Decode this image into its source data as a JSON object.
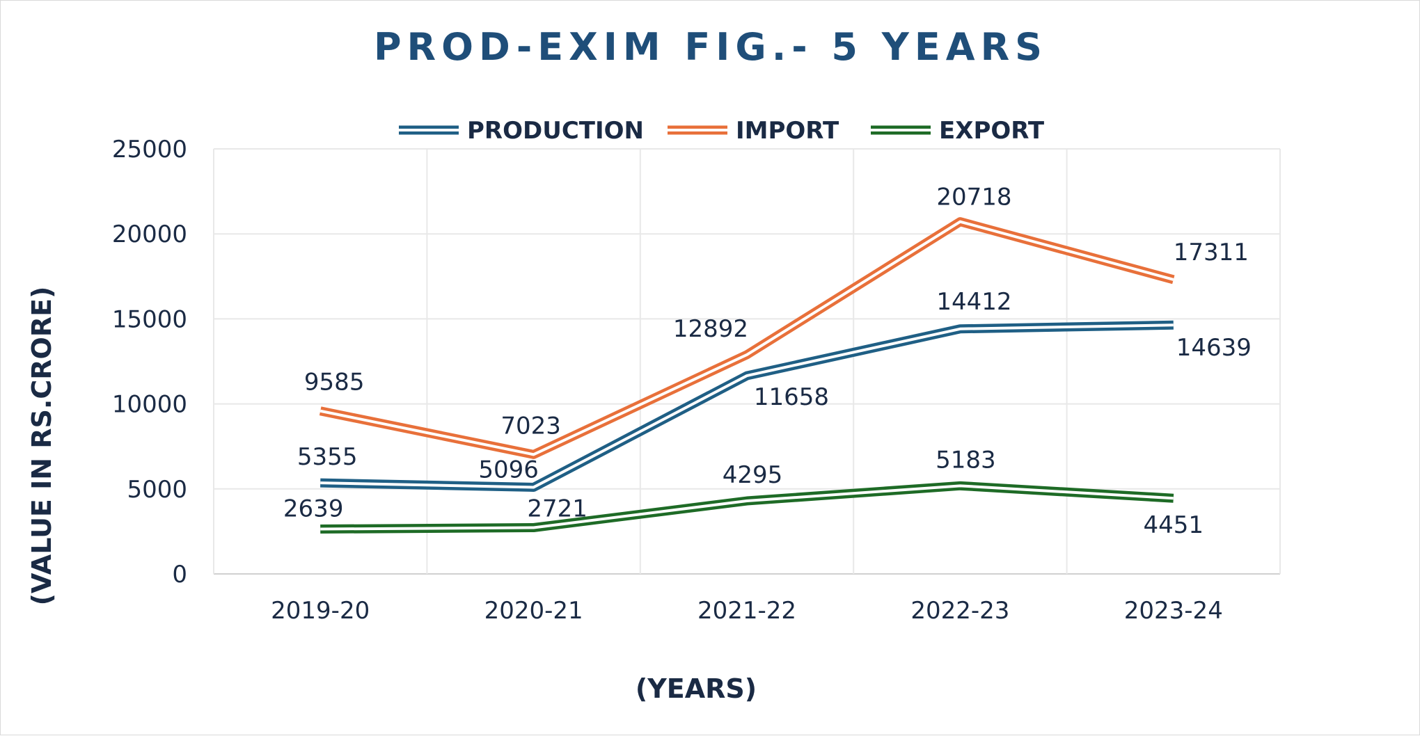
{
  "chart_data": {
    "type": "line",
    "title": "PROD-EXIM FIG.- 5 YEARS",
    "xlabel": "(YEARS)",
    "ylabel": "(VALUE IN RS.CRORE)",
    "categories": [
      "2019-20",
      "2020-21",
      "2021-22",
      "2022-23",
      "2023-24"
    ],
    "ylim": [
      0,
      25000
    ],
    "yticks": [
      0,
      5000,
      10000,
      15000,
      20000,
      25000
    ],
    "grid": true,
    "legend_position": "top",
    "series": [
      {
        "name": "PRODUCTION",
        "color": "#1f5f85",
        "values": [
          5355,
          5096,
          11658,
          14412,
          14639
        ]
      },
      {
        "name": "IMPORT",
        "color": "#e8703a",
        "values": [
          9585,
          7023,
          12892,
          20718,
          17311
        ]
      },
      {
        "name": "EXPORT",
        "color": "#1e6b26",
        "values": [
          2639,
          2721,
          4295,
          5183,
          4451
        ]
      }
    ],
    "data_labels": [
      [
        "5355",
        "5096",
        "11658",
        "14412",
        "14639"
      ],
      [
        "9585",
        "7023",
        "12892",
        "20718",
        "17311"
      ],
      [
        "2639",
        "2721",
        "4295",
        "5183",
        "4451"
      ]
    ]
  }
}
